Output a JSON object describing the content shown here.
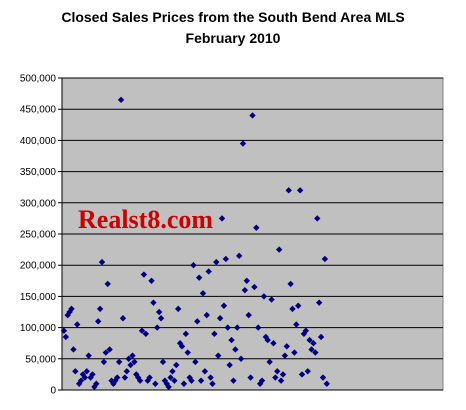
{
  "chart_data": {
    "type": "scatter",
    "title": "Closed Sales Prices from the South Bend Area MLS",
    "subtitle": "February 2010",
    "xlabel": "",
    "ylabel": "",
    "ylim": [
      0,
      500000
    ],
    "yticks": [
      0,
      50000,
      100000,
      150000,
      200000,
      250000,
      300000,
      350000,
      400000,
      450000,
      500000
    ],
    "ytick_labels": [
      "0",
      "50,000",
      "100,000",
      "150,000",
      "200,000",
      "250,000",
      "300,000",
      "350,000",
      "400,000",
      "450,000",
      "500,000"
    ],
    "grid": true,
    "marker": "diamond",
    "marker_color": "#000080",
    "plot_background": "#c0c0c0",
    "watermark": "Realst8.com",
    "watermark_color": "#cc0000",
    "x_range": [
      0,
      200
    ],
    "points": [
      [
        1,
        95000
      ],
      [
        2,
        85000
      ],
      [
        3,
        120000
      ],
      [
        4,
        125000
      ],
      [
        5,
        130000
      ],
      [
        6,
        65000
      ],
      [
        7,
        30000
      ],
      [
        8,
        105000
      ],
      [
        9,
        10000
      ],
      [
        10,
        15000
      ],
      [
        11,
        25000
      ],
      [
        12,
        20000
      ],
      [
        13,
        30000
      ],
      [
        14,
        55000
      ],
      [
        15,
        20000
      ],
      [
        16,
        25000
      ],
      [
        17,
        5000
      ],
      [
        18,
        10000
      ],
      [
        19,
        110000
      ],
      [
        20,
        130000
      ],
      [
        21,
        205000
      ],
      [
        22,
        45000
      ],
      [
        23,
        60000
      ],
      [
        24,
        170000
      ],
      [
        25,
        65000
      ],
      [
        26,
        15000
      ],
      [
        27,
        10000
      ],
      [
        28,
        15000
      ],
      [
        29,
        20000
      ],
      [
        30,
        45000
      ],
      [
        31,
        465000
      ],
      [
        32,
        115000
      ],
      [
        33,
        20000
      ],
      [
        34,
        30000
      ],
      [
        35,
        50000
      ],
      [
        36,
        40000
      ],
      [
        37,
        55000
      ],
      [
        38,
        45000
      ],
      [
        39,
        25000
      ],
      [
        40,
        20000
      ],
      [
        41,
        15000
      ],
      [
        42,
        95000
      ],
      [
        43,
        185000
      ],
      [
        44,
        90000
      ],
      [
        45,
        15000
      ],
      [
        46,
        20000
      ],
      [
        47,
        175000
      ],
      [
        48,
        140000
      ],
      [
        49,
        10000
      ],
      [
        50,
        100000
      ],
      [
        51,
        125000
      ],
      [
        52,
        115000
      ],
      [
        53,
        45000
      ],
      [
        54,
        15000
      ],
      [
        55,
        10000
      ],
      [
        56,
        5000
      ],
      [
        57,
        20000
      ],
      [
        58,
        30000
      ],
      [
        59,
        15000
      ],
      [
        60,
        40000
      ],
      [
        61,
        130000
      ],
      [
        62,
        75000
      ],
      [
        63,
        70000
      ],
      [
        64,
        10000
      ],
      [
        65,
        90000
      ],
      [
        66,
        60000
      ],
      [
        67,
        20000
      ],
      [
        68,
        15000
      ],
      [
        69,
        200000
      ],
      [
        70,
        45000
      ],
      [
        71,
        110000
      ],
      [
        72,
        180000
      ],
      [
        73,
        15000
      ],
      [
        74,
        155000
      ],
      [
        75,
        30000
      ],
      [
        76,
        120000
      ],
      [
        77,
        190000
      ],
      [
        78,
        20000
      ],
      [
        79,
        10000
      ],
      [
        80,
        90000
      ],
      [
        81,
        205000
      ],
      [
        82,
        55000
      ],
      [
        83,
        115000
      ],
      [
        84,
        275000
      ],
      [
        85,
        135000
      ],
      [
        86,
        210000
      ],
      [
        87,
        100000
      ],
      [
        88,
        40000
      ],
      [
        89,
        80000
      ],
      [
        90,
        15000
      ],
      [
        91,
        65000
      ],
      [
        92,
        100000
      ],
      [
        93,
        215000
      ],
      [
        94,
        50000
      ],
      [
        95,
        395000
      ],
      [
        96,
        160000
      ],
      [
        97,
        175000
      ],
      [
        98,
        120000
      ],
      [
        99,
        20000
      ],
      [
        100,
        440000
      ],
      [
        101,
        165000
      ],
      [
        102,
        260000
      ],
      [
        103,
        100000
      ],
      [
        104,
        10000
      ],
      [
        105,
        15000
      ],
      [
        106,
        150000
      ],
      [
        107,
        85000
      ],
      [
        108,
        80000
      ],
      [
        109,
        45000
      ],
      [
        110,
        145000
      ],
      [
        111,
        75000
      ],
      [
        112,
        20000
      ],
      [
        113,
        30000
      ],
      [
        114,
        225000
      ],
      [
        115,
        15000
      ],
      [
        116,
        25000
      ],
      [
        117,
        55000
      ],
      [
        118,
        70000
      ],
      [
        119,
        320000
      ],
      [
        120,
        170000
      ],
      [
        121,
        130000
      ],
      [
        122,
        60000
      ],
      [
        123,
        105000
      ],
      [
        124,
        135000
      ],
      [
        125,
        320000
      ],
      [
        126,
        25000
      ],
      [
        127,
        90000
      ],
      [
        128,
        95000
      ],
      [
        129,
        30000
      ],
      [
        130,
        80000
      ],
      [
        131,
        65000
      ],
      [
        132,
        75000
      ],
      [
        133,
        60000
      ],
      [
        134,
        275000
      ],
      [
        135,
        140000
      ],
      [
        136,
        85000
      ],
      [
        137,
        20000
      ],
      [
        138,
        210000
      ],
      [
        139,
        10000
      ]
    ]
  }
}
